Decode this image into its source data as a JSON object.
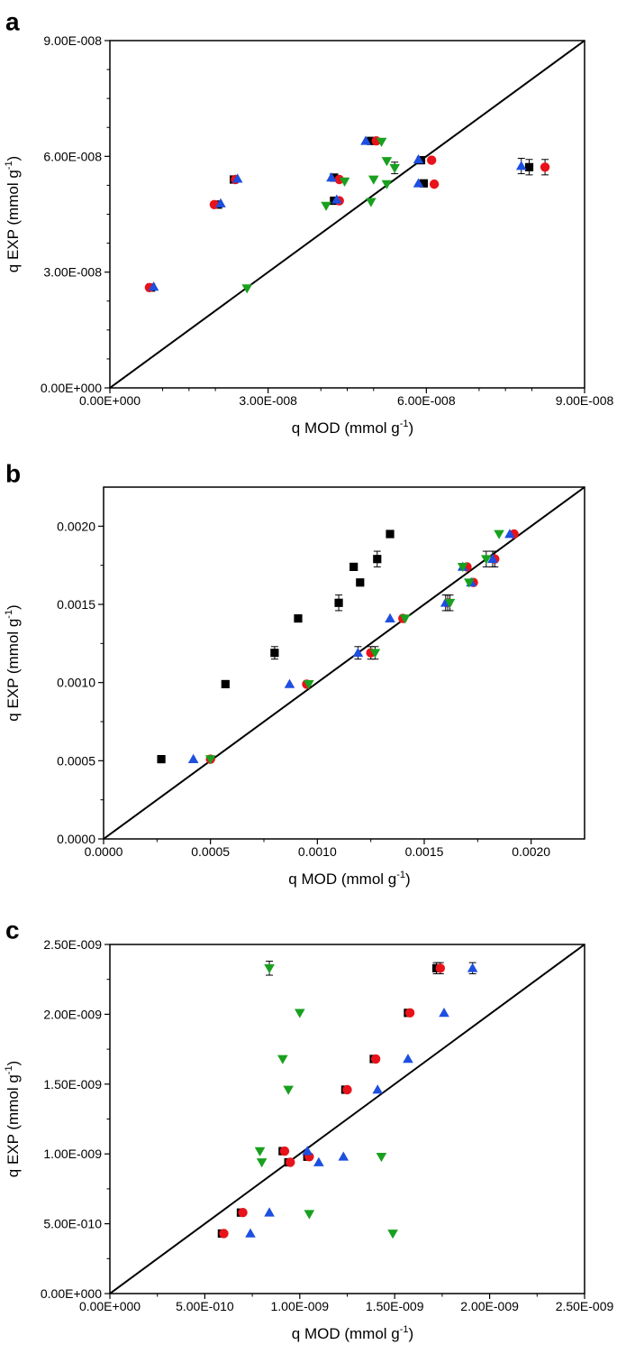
{
  "colors": {
    "series_black": "#000000",
    "series_red": "#e8121a",
    "series_blue": "#1d4fe0",
    "series_green": "#18a01e",
    "axis": "#000000"
  },
  "chart_data": [
    {
      "panel_label": "a",
      "type": "scatter",
      "title": "",
      "xlabel": "q MOD (mmol g-1)",
      "ylabel": "q EXP (mmol g-1)",
      "xlabel_base": "q MOD (mmol g",
      "ylabel_base": "q EXP (mmol g",
      "label_sup": "-1",
      "label_close": ")",
      "xlim": [
        0,
        9e-08
      ],
      "ylim": [
        0,
        9e-08
      ],
      "x_ticks": [
        0,
        3e-08,
        6e-08,
        9e-08
      ],
      "y_ticks": [
        0,
        3e-08,
        6e-08,
        9e-08
      ],
      "x_tick_labels": [
        "0.00E+000",
        "3.00E-008",
        "6.00E-008",
        "9.00E-008"
      ],
      "y_tick_labels": [
        "0.00E+000",
        "3.00E-008",
        "6.00E-008",
        "9.00E-008"
      ],
      "identity_line": true,
      "series": [
        {
          "name": "black squares",
          "marker": "square",
          "color": "#000000",
          "points": [
            [
              7.8e-09,
              2.6e-08
            ],
            [
              2.05e-08,
              4.75e-08
            ],
            [
              2.35e-08,
              5.4e-08
            ],
            [
              4.25e-08,
              4.85e-08
            ],
            [
              4.25e-08,
              5.45e-08
            ],
            [
              4.95e-08,
              6.4e-08
            ],
            [
              5.9e-08,
              5.9e-08
            ],
            [
              5.95e-08,
              5.3e-08
            ],
            [
              7.95e-08,
              5.72e-08
            ]
          ],
          "err": [
            0,
            0,
            0,
            0,
            0,
            0,
            0,
            0,
            2e-09
          ]
        },
        {
          "name": "red circles",
          "marker": "circle",
          "color": "#e8121a",
          "points": [
            [
              7.5e-09,
              2.6e-08
            ],
            [
              1.98e-08,
              4.75e-08
            ],
            [
              2.38e-08,
              5.4e-08
            ],
            [
              4.35e-08,
              4.85e-08
            ],
            [
              4.35e-08,
              5.4e-08
            ],
            [
              5.05e-08,
              6.4e-08
            ],
            [
              6.1e-08,
              5.9e-08
            ],
            [
              6.15e-08,
              5.28e-08
            ],
            [
              8.25e-08,
              5.72e-08
            ]
          ],
          "err": [
            0,
            0,
            0,
            0,
            0,
            0,
            0,
            0,
            2e-09
          ]
        },
        {
          "name": "blue triangles",
          "marker": "triangle-up",
          "color": "#1d4fe0",
          "points": [
            [
              8.3e-09,
              2.62e-08
            ],
            [
              2.1e-08,
              4.78e-08
            ],
            [
              2.42e-08,
              5.42e-08
            ],
            [
              4.3e-08,
              4.88e-08
            ],
            [
              4.2e-08,
              5.45e-08
            ],
            [
              4.85e-08,
              6.4e-08
            ],
            [
              5.85e-08,
              5.92e-08
            ],
            [
              5.85e-08,
              5.3e-08
            ],
            [
              7.8e-08,
              5.75e-08
            ]
          ],
          "err": [
            0,
            0,
            0,
            0,
            0,
            0,
            0,
            0,
            2e-09
          ]
        },
        {
          "name": "green triangles",
          "marker": "triangle-down",
          "color": "#18a01e",
          "points": [
            [
              2.6e-08,
              2.58e-08
            ],
            [
              4.1e-08,
              4.72e-08
            ],
            [
              4.45e-08,
              5.35e-08
            ],
            [
              4.95e-08,
              4.82e-08
            ],
            [
              5e-08,
              5.4e-08
            ],
            [
              5.15e-08,
              6.38e-08
            ],
            [
              5.25e-08,
              5.88e-08
            ],
            [
              5.25e-08,
              5.28e-08
            ],
            [
              5.4e-08,
              5.7e-08
            ]
          ],
          "err": [
            0,
            0,
            0,
            0,
            0,
            0,
            0,
            0,
            1.5e-09
          ]
        }
      ]
    },
    {
      "panel_label": "b",
      "type": "scatter",
      "title": "",
      "xlabel": "q MOD (mmol g-1)",
      "ylabel": "q EXP (mmol g-1)",
      "xlabel_base": "q MOD (mmol g",
      "ylabel_base": "q EXP (mmol g",
      "label_sup": "-1",
      "label_close": ")",
      "xlim": [
        0,
        0.00225
      ],
      "ylim": [
        0,
        0.00225
      ],
      "x_ticks": [
        0,
        0.0005,
        0.001,
        0.0015,
        0.002
      ],
      "y_ticks": [
        0,
        0.0005,
        0.001,
        0.0015,
        0.002
      ],
      "x_tick_labels": [
        "0.0000",
        "0.0005",
        "0.0010",
        "0.0015",
        "0.0020"
      ],
      "y_tick_labels": [
        "0.0000",
        "0.0005",
        "0.0010",
        "0.0015",
        "0.0020"
      ],
      "identity_line": true,
      "series": [
        {
          "name": "black squares",
          "marker": "square",
          "color": "#000000",
          "points": [
            [
              0.00027,
              0.00051
            ],
            [
              0.00057,
              0.00099
            ],
            [
              0.0008,
              0.00119
            ],
            [
              0.00091,
              0.00141
            ],
            [
              0.0011,
              0.00151
            ],
            [
              0.00117,
              0.00174
            ],
            [
              0.0012,
              0.00164
            ],
            [
              0.00128,
              0.00179
            ],
            [
              0.00134,
              0.00195
            ]
          ],
          "err": [
            0,
            0,
            4e-05,
            0,
            5e-05,
            0,
            0,
            5e-05,
            0
          ]
        },
        {
          "name": "red circles",
          "marker": "circle",
          "color": "#e8121a",
          "points": [
            [
              0.0005,
              0.00051
            ],
            [
              0.00095,
              0.00099
            ],
            [
              0.00125,
              0.00119
            ],
            [
              0.0014,
              0.00141
            ],
            [
              0.00161,
              0.00151
            ],
            [
              0.0017,
              0.00174
            ],
            [
              0.00173,
              0.00164
            ],
            [
              0.00183,
              0.00179
            ],
            [
              0.00192,
              0.00195
            ]
          ],
          "err": [
            0,
            0,
            4e-05,
            0,
            5e-05,
            0,
            0,
            5e-05,
            0
          ]
        },
        {
          "name": "blue triangles",
          "marker": "triangle-up",
          "color": "#1d4fe0",
          "points": [
            [
              0.00042,
              0.00051
            ],
            [
              0.00087,
              0.00099
            ],
            [
              0.00119,
              0.00119
            ],
            [
              0.00134,
              0.00141
            ],
            [
              0.0016,
              0.00151
            ],
            [
              0.00168,
              0.00174
            ],
            [
              0.00172,
              0.00164
            ],
            [
              0.00182,
              0.00179
            ],
            [
              0.0019,
              0.00195
            ]
          ],
          "err": [
            0,
            0,
            4e-05,
            0,
            5e-05,
            0,
            0,
            5e-05,
            0
          ]
        },
        {
          "name": "green triangles",
          "marker": "triangle-down",
          "color": "#18a01e",
          "points": [
            [
              0.0005,
              0.00051
            ],
            [
              0.00096,
              0.00099
            ],
            [
              0.00127,
              0.00119
            ],
            [
              0.00141,
              0.00141
            ],
            [
              0.00162,
              0.00151
            ],
            [
              0.00168,
              0.00174
            ],
            [
              0.00171,
              0.00164
            ],
            [
              0.00179,
              0.00179
            ],
            [
              0.00185,
              0.00195
            ]
          ],
          "err": [
            0,
            0,
            4e-05,
            0,
            5e-05,
            0,
            0,
            5e-05,
            0
          ]
        }
      ]
    },
    {
      "panel_label": "c",
      "type": "scatter",
      "title": "",
      "xlabel": "q MOD (mmol g-1)",
      "ylabel": "q EXP (mmol g-1)",
      "xlabel_base": "q MOD (mmol g",
      "ylabel_base": "q EXP (mmol g",
      "label_sup": "-1",
      "label_close": ")",
      "xlim": [
        0,
        2.5e-09
      ],
      "ylim": [
        0,
        2.5e-09
      ],
      "x_ticks": [
        0,
        5e-10,
        1e-09,
        1.5e-09,
        2e-09,
        2.5e-09
      ],
      "y_ticks": [
        0,
        5e-10,
        1e-09,
        1.5e-09,
        2e-09,
        2.5e-09
      ],
      "x_tick_labels": [
        "0.00E+000",
        "5.00E-010",
        "1.00E-009",
        "1.50E-009",
        "2.00E-009",
        "2.50E-009"
      ],
      "y_tick_labels": [
        "0.00E+000",
        "5.00E-010",
        "1.00E-009",
        "1.50E-009",
        "2.00E-009",
        "2.50E-009"
      ],
      "identity_line": true,
      "series": [
        {
          "name": "black squares",
          "marker": "square",
          "color": "#000000",
          "points": [
            [
              5.9e-10,
              4.3e-10
            ],
            [
              6.9e-10,
              5.8e-10
            ],
            [
              9.1e-10,
              1.02e-09
            ],
            [
              9.4e-10,
              9.4e-10
            ],
            [
              1.04e-09,
              9.8e-10
            ],
            [
              1.24e-09,
              1.46e-09
            ],
            [
              1.39e-09,
              1.68e-09
            ],
            [
              1.57e-09,
              2.01e-09
            ],
            [
              1.72e-09,
              2.33e-09
            ]
          ],
          "err": [
            0,
            0,
            0,
            0,
            0,
            0,
            0,
            0,
            4e-11
          ]
        },
        {
          "name": "red circles",
          "marker": "circle",
          "color": "#e8121a",
          "points": [
            [
              6e-10,
              4.3e-10
            ],
            [
              7e-10,
              5.8e-10
            ],
            [
              9.2e-10,
              1.02e-09
            ],
            [
              9.5e-10,
              9.4e-10
            ],
            [
              1.05e-09,
              9.8e-10
            ],
            [
              1.25e-09,
              1.46e-09
            ],
            [
              1.4e-09,
              1.68e-09
            ],
            [
              1.58e-09,
              2.01e-09
            ],
            [
              1.74e-09,
              2.33e-09
            ]
          ],
          "err": [
            0,
            0,
            0,
            0,
            0,
            0,
            0,
            0,
            4e-11
          ]
        },
        {
          "name": "blue triangles",
          "marker": "triangle-up",
          "color": "#1d4fe0",
          "points": [
            [
              7.4e-10,
              4.3e-10
            ],
            [
              8.4e-10,
              5.8e-10
            ],
            [
              1.04e-09,
              1.02e-09
            ],
            [
              1.1e-09,
              9.4e-10
            ],
            [
              1.23e-09,
              9.8e-10
            ],
            [
              1.41e-09,
              1.46e-09
            ],
            [
              1.57e-09,
              1.68e-09
            ],
            [
              1.76e-09,
              2.01e-09
            ],
            [
              1.91e-09,
              2.33e-09
            ]
          ],
          "err": [
            0,
            0,
            0,
            0,
            0,
            0,
            0,
            0,
            4e-11
          ]
        },
        {
          "name": "green triangles",
          "marker": "triangle-down",
          "color": "#18a01e",
          "points": [
            [
              1.49e-09,
              4.3e-10
            ],
            [
              1.05e-09,
              5.7e-10
            ],
            [
              7.9e-10,
              1.02e-09
            ],
            [
              8e-10,
              9.4e-10
            ],
            [
              1.43e-09,
              9.8e-10
            ],
            [
              9.4e-10,
              1.46e-09
            ],
            [
              9.1e-10,
              1.68e-09
            ],
            [
              1e-09,
              2.01e-09
            ],
            [
              8.4e-10,
              2.33e-09
            ]
          ],
          "err": [
            0,
            0,
            0,
            0,
            0,
            0,
            0,
            0,
            5e-11
          ]
        }
      ]
    }
  ]
}
